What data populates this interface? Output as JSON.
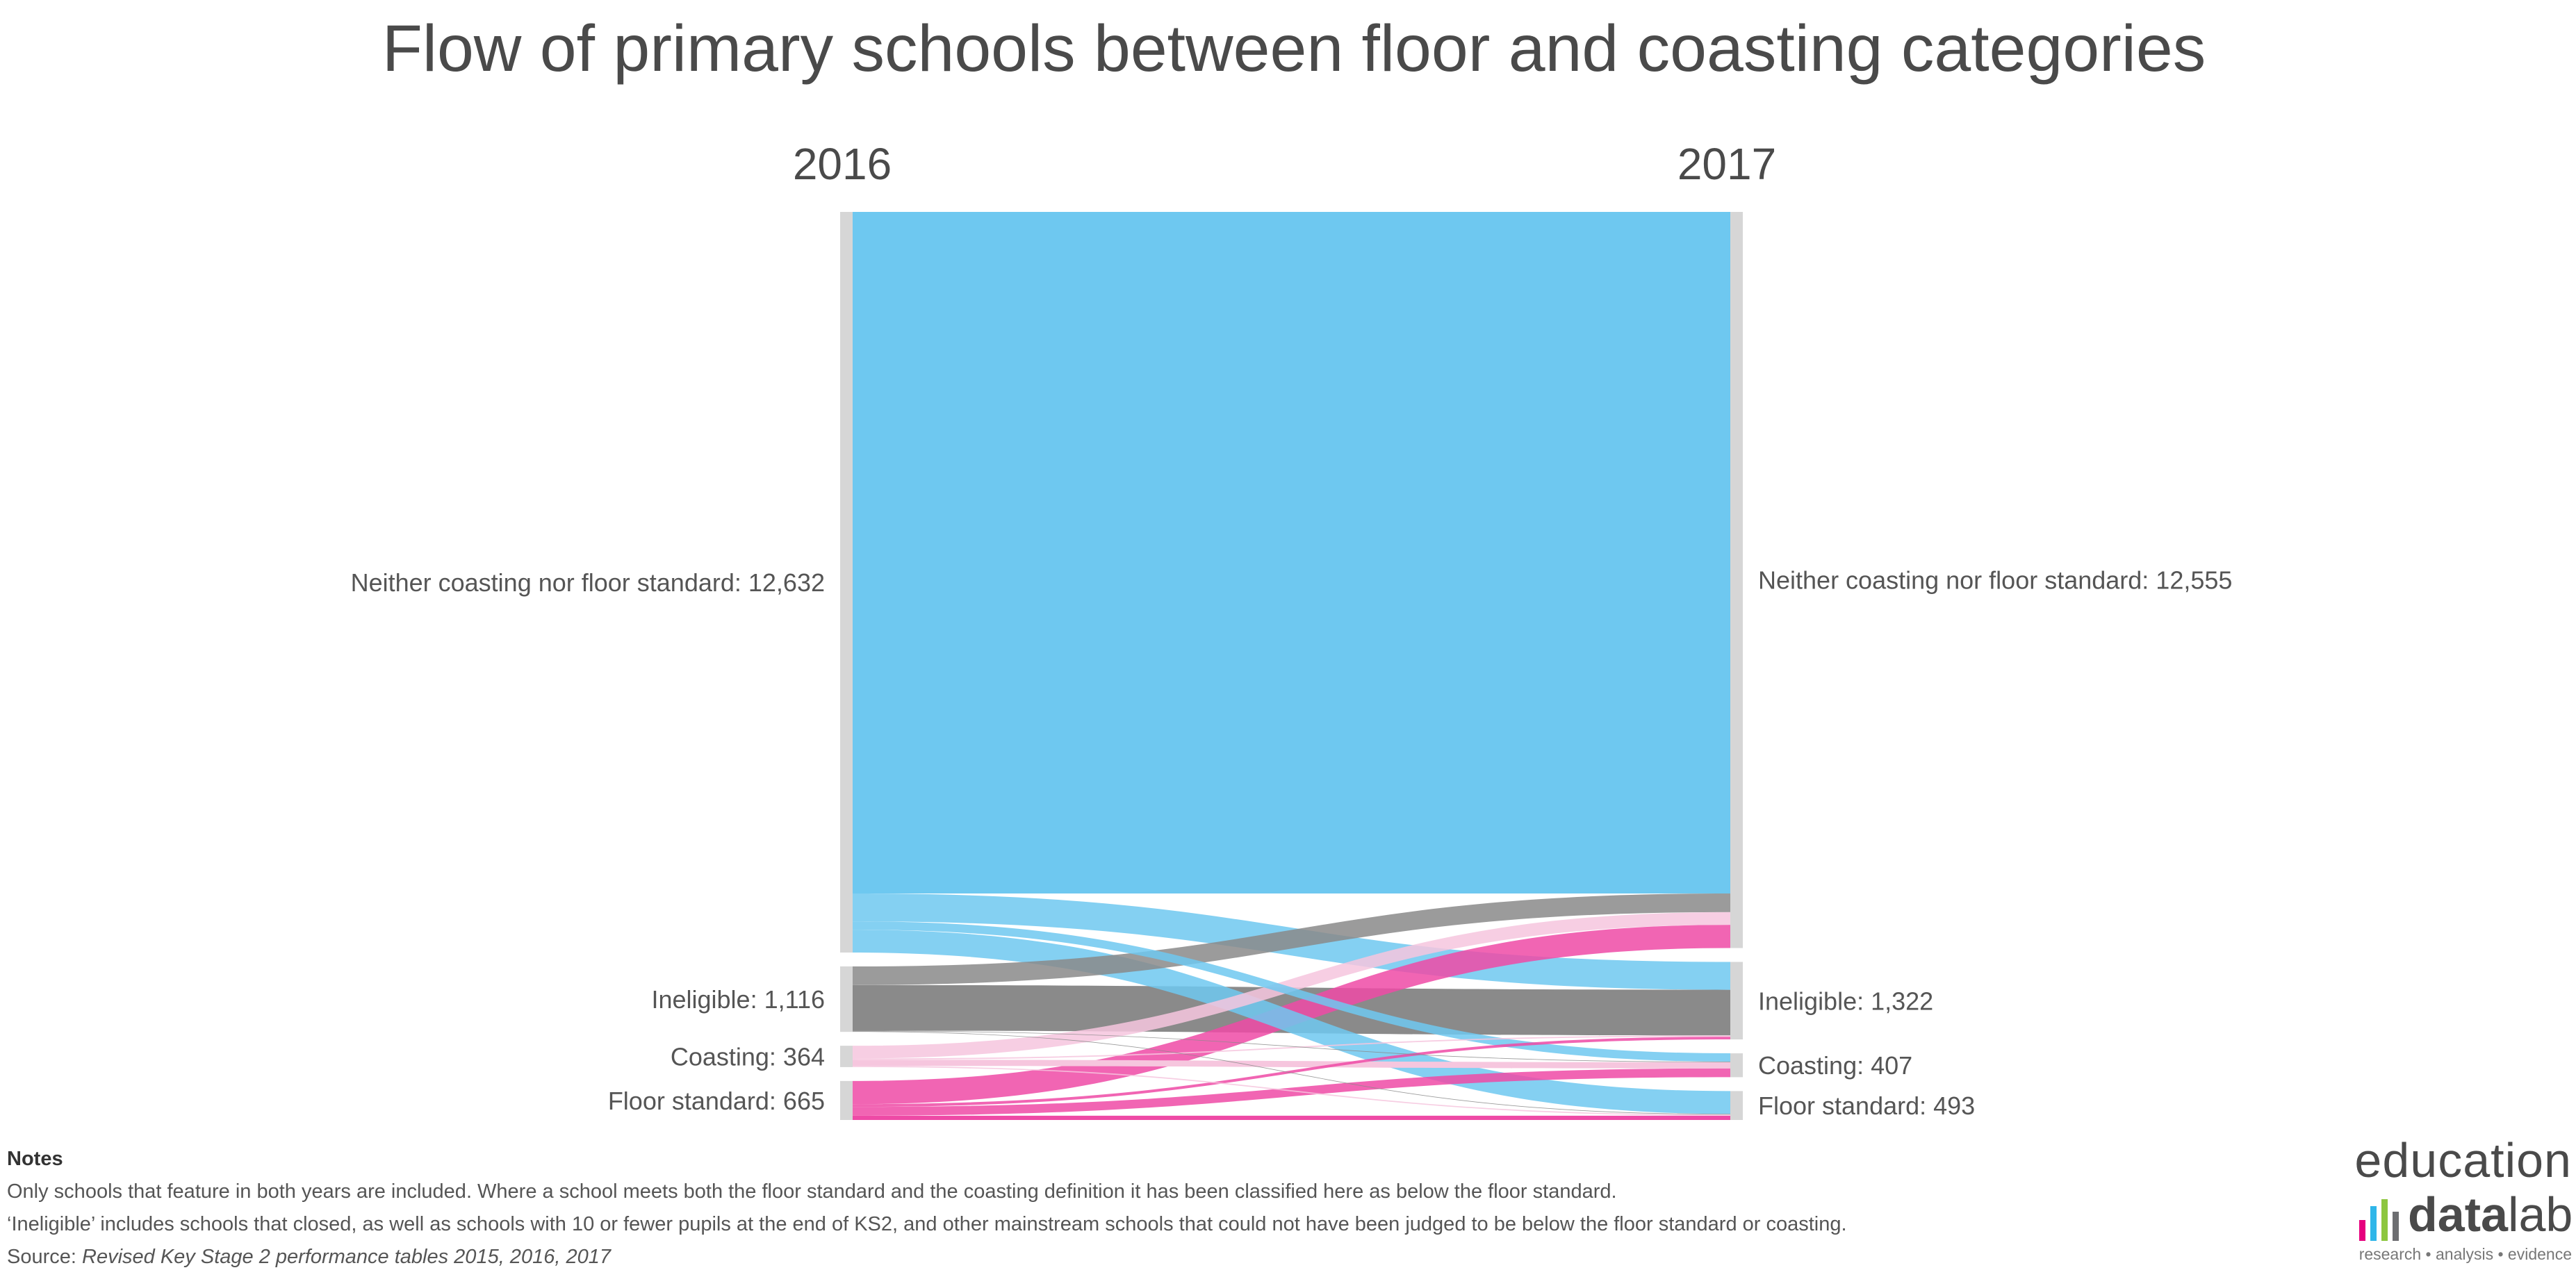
{
  "chart_data": {
    "type": "sankey",
    "title": "Flow of primary schools between floor and coasting categories",
    "source_year": "2016",
    "target_year": "2017",
    "colors": {
      "Neither coasting nor floor standard": "#6ec8f0",
      "Ineligible": "#8a8a8a",
      "Coasting": "#f6c6de",
      "Floor standard": "#ee4aa6",
      "node_bar": "#d6d6d6"
    },
    "source_nodes": [
      {
        "name": "Neither coasting nor floor standard",
        "label": "Neither coasting nor floor standard: 12,632",
        "value": 12632
      },
      {
        "name": "Ineligible",
        "label": "Ineligible: 1,116",
        "value": 1116
      },
      {
        "name": "Coasting",
        "label": "Coasting: 364",
        "value": 364
      },
      {
        "name": "Floor standard",
        "label": "Floor standard: 665",
        "value": 665
      }
    ],
    "target_nodes": [
      {
        "name": "Neither coasting nor floor standard",
        "label": "Neither coasting nor floor standard: 12,555",
        "value": 12555
      },
      {
        "name": "Ineligible",
        "label": "Ineligible: 1,322",
        "value": 1322
      },
      {
        "name": "Coasting",
        "label": "Coasting: 407",
        "value": 407
      },
      {
        "name": "Floor standard",
        "label": "Floor standard: 493",
        "value": 493
      }
    ],
    "flows": [
      {
        "source": 0,
        "target": 0,
        "value": 11625
      },
      {
        "source": 0,
        "target": 1,
        "value": 475
      },
      {
        "source": 0,
        "target": 2,
        "value": 142
      },
      {
        "source": 0,
        "target": 3,
        "value": 390
      },
      {
        "source": 1,
        "target": 0,
        "value": 318
      },
      {
        "source": 1,
        "target": 1,
        "value": 778
      },
      {
        "source": 1,
        "target": 2,
        "value": 10
      },
      {
        "source": 1,
        "target": 3,
        "value": 10
      },
      {
        "source": 2,
        "target": 0,
        "value": 217
      },
      {
        "source": 2,
        "target": 1,
        "value": 22
      },
      {
        "source": 2,
        "target": 2,
        "value": 105
      },
      {
        "source": 2,
        "target": 3,
        "value": 20
      },
      {
        "source": 3,
        "target": 0,
        "value": 395
      },
      {
        "source": 3,
        "target": 1,
        "value": 47
      },
      {
        "source": 3,
        "target": 2,
        "value": 150
      },
      {
        "source": 3,
        "target": 3,
        "value": 73
      }
    ]
  },
  "notes": {
    "heading": "Notes",
    "line1": "Only schools that feature in both years are included. Where a school meets both the floor standard and the coasting definition it has been classified here as below the floor standard.",
    "line2": "‘Ineligible’ includes schools that closed, as well as schools with 10 or fewer pupils at the end of KS2, and other mainstream schools that could not have been judged to be below the floor standard or coasting.",
    "source_prefix": "Source: ",
    "source_text": "Revised Key Stage 2 performance tables 2015, 2016, 2017"
  },
  "logo": {
    "top": "education",
    "main_bold": "data",
    "main_light": "lab",
    "tagline": "research • analysis • evidence",
    "bar_colors": [
      "#e6007e",
      "#2fb6e9",
      "#8dc63f",
      "#6d6e71"
    ]
  }
}
